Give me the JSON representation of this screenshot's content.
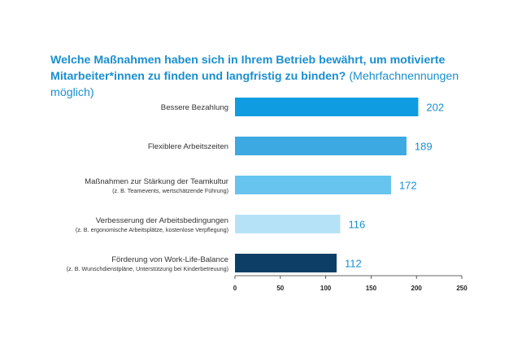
{
  "chart_data": {
    "type": "bar",
    "orientation": "horizontal",
    "title_bold": "Welche Maßnahmen haben sich in Ihrem Betrieb bewährt, um motivierte Mitarbeiter*innen zu finden und langfristig zu binden?",
    "title_normal": "(Mehrfachnennungen möglich)",
    "categories": [
      {
        "label": "Bessere Bezahlung",
        "sub": ""
      },
      {
        "label": "Flexiblere Arbeitszeiten",
        "sub": ""
      },
      {
        "label": "Maßnahmen zur Stärkung der Teamkultur",
        "sub": "(z. B. Teamevents, wertschätzende Führung)"
      },
      {
        "label": "Verbesserung der Arbeitsbedingungen",
        "sub": "(z. B. ergonomische Arbeitsplätze, kostenlose Verpflegung)"
      },
      {
        "label": "Förderung von Work-Life-Balance",
        "sub": "(z. B. Wunschdienstpläne, Unterstützung bei Kinderbetreuung)"
      }
    ],
    "values": [
      202,
      189,
      172,
      116,
      112
    ],
    "colors": [
      "#0f9ce0",
      "#3ca9e2",
      "#66c4ee",
      "#b6e2f7",
      "#0d3f66"
    ],
    "xlim": [
      0,
      250
    ],
    "ticks": [
      0,
      50,
      100,
      150,
      200,
      250
    ],
    "grid": false,
    "legend": "none"
  }
}
